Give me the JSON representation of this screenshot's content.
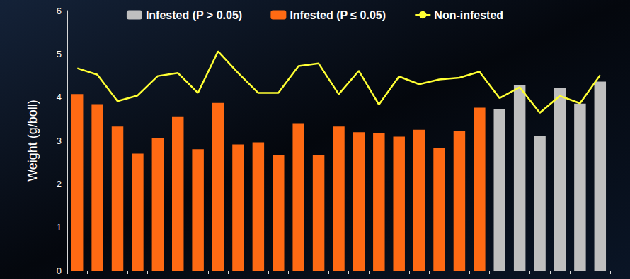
{
  "chart_data": {
    "type": "bar",
    "y_label": "Weight (g/boll)",
    "categories": [
      null,
      null,
      null,
      null,
      null,
      null,
      null,
      null,
      null,
      null,
      null,
      null,
      null,
      null,
      null,
      null,
      null,
      null,
      null,
      null,
      null,
      null,
      null,
      null,
      null,
      null,
      null
    ],
    "series": [
      {
        "name": "Infested (P > 0.05)",
        "type": "bar",
        "color": "#bfbfbf",
        "values": [
          null,
          null,
          null,
          null,
          null,
          null,
          null,
          null,
          null,
          null,
          null,
          null,
          null,
          null,
          null,
          null,
          null,
          null,
          null,
          null,
          null,
          3.73,
          4.28,
          3.1,
          4.22,
          3.85,
          4.36
        ]
      },
      {
        "name": "Infested (P ≤ 0.05)",
        "type": "bar",
        "color": "#ff6a13",
        "values": [
          4.07,
          3.84,
          3.32,
          2.7,
          3.05,
          3.56,
          2.8,
          3.87,
          2.91,
          2.96,
          2.67,
          3.4,
          2.67,
          3.32,
          3.19,
          3.18,
          3.09,
          3.25,
          2.83,
          3.23,
          3.76,
          null,
          null,
          null,
          null,
          null,
          null
        ]
      },
      {
        "name": "Non-infested",
        "type": "line",
        "color": "#ffff33",
        "values": [
          4.67,
          4.52,
          3.91,
          4.04,
          4.49,
          4.56,
          4.1,
          5.06,
          4.56,
          4.1,
          4.1,
          4.72,
          4.78,
          4.07,
          4.61,
          3.83,
          4.48,
          4.3,
          4.41,
          4.45,
          4.59,
          3.98,
          4.23,
          3.64,
          4.03,
          3.86,
          4.51
        ]
      }
    ],
    "ylim": [
      0,
      6
    ],
    "yticks": [
      0,
      1,
      2,
      3,
      4,
      5,
      6
    ],
    "grid": false,
    "legend": "top",
    "tick_labels": "y"
  }
}
